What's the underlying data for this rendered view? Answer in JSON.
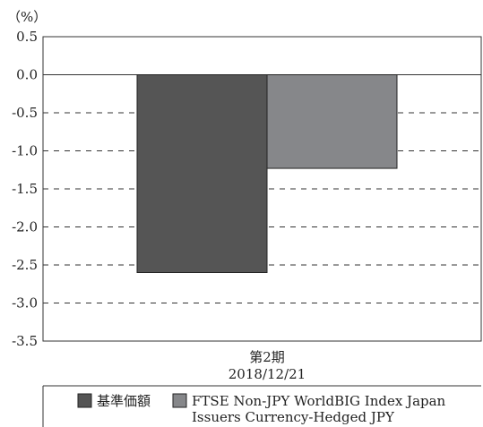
{
  "chart_data": {
    "type": "bar",
    "unit_label": "（%）",
    "categories": [
      "第2期"
    ],
    "category_sublabels": [
      "2018/12/21"
    ],
    "series": [
      {
        "name": "基準価額",
        "values": [
          -2.6
        ],
        "color": "#555555"
      },
      {
        "name": "FTSE Non-JPY WorldBIG Index Japan Issuers Currency-Hedged JPY",
        "values": [
          -1.23
        ],
        "color": "#86878a"
      }
    ],
    "legend_lines": [
      "FTSE Non-JPY WorldBIG Index Japan",
      "Issuers Currency-Hedged JPY"
    ],
    "ylim": [
      -3.5,
      0.5
    ],
    "yticks": [
      0.5,
      0.0,
      -0.5,
      -1.0,
      -1.5,
      -2.0,
      -2.5,
      -3.0,
      -3.5
    ],
    "ytick_labels": [
      "0.5",
      "0.0",
      "-0.5",
      "-1.0",
      "-1.5",
      "-2.0",
      "-2.5",
      "-3.0",
      "-3.5"
    ],
    "grid": "dashed"
  }
}
